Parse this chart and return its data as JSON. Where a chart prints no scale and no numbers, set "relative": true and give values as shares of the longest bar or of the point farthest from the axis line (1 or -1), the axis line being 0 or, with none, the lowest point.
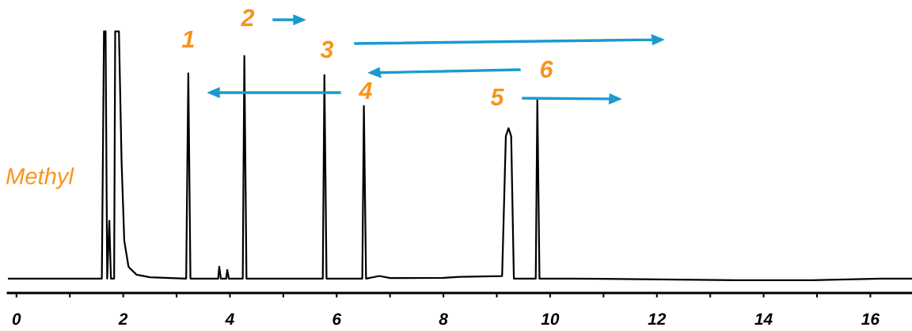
{
  "chart_data": {
    "type": "line",
    "relative": true,
    "tick_labels": "x",
    "grid": false,
    "xlim": [
      -0.16,
      16.78
    ],
    "xticks": [
      0,
      {
        "value": 1,
        "label": null
      },
      2,
      {
        "value": 3,
        "label": null
      },
      4,
      {
        "value": 5,
        "label": null
      },
      6,
      {
        "value": 7,
        "label": null
      },
      8,
      {
        "value": 9,
        "label": null
      },
      10,
      {
        "value": 11,
        "label": null
      },
      12,
      {
        "value": 13,
        "label": null
      },
      14,
      {
        "value": 15,
        "label": null
      },
      16
    ],
    "x": [
      -0.15,
      1.0,
      1.6,
      1.64,
      1.67,
      1.7,
      1.74,
      1.77,
      1.83,
      1.85,
      1.92,
      1.97,
      2.02,
      2.1,
      2.25,
      2.5,
      3.18,
      3.22,
      3.26,
      3.78,
      3.8,
      3.83,
      3.93,
      3.95,
      3.98,
      4.24,
      4.27,
      4.31,
      5.74,
      5.77,
      5.81,
      6.48,
      6.51,
      6.55,
      6.8,
      7.0,
      8.0,
      8.3,
      9.1,
      9.17,
      9.22,
      9.27,
      9.32,
      9.73,
      9.76,
      9.8,
      10.4,
      13.5,
      14.9,
      16.2,
      16.78
    ],
    "series": [
      {
        "color": "#000000",
        "values": [
          0.055,
          0.055,
          0.055,
          1.0,
          1.0,
          0.055,
          0.276,
          0.055,
          0.055,
          1.0,
          1.0,
          0.5,
          0.2,
          0.1,
          0.07,
          0.06,
          0.055,
          0.84,
          0.055,
          0.055,
          0.1,
          0.055,
          0.055,
          0.088,
          0.055,
          0.055,
          0.906,
          0.055,
          0.055,
          0.833,
          0.055,
          0.055,
          0.715,
          0.055,
          0.065,
          0.057,
          0.058,
          0.062,
          0.065,
          0.6,
          0.63,
          0.6,
          0.055,
          0.055,
          0.74,
          0.055,
          0.055,
          0.049,
          0.049,
          0.055,
          0.055
        ]
      }
    ],
    "annotations": [
      "1",
      "2",
      "3",
      "4",
      "5",
      "6",
      "Methyl"
    ]
  }
}
